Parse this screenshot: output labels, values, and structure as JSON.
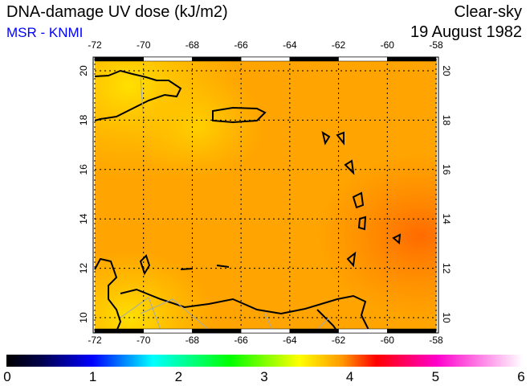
{
  "header": {
    "title": "DNA-damage UV dose (kJ/m2)",
    "source": "MSR - KNMI",
    "sky_condition": "Clear-sky",
    "date": "19 August 1982"
  },
  "map": {
    "lon_ticks": [
      -72,
      -70,
      -68,
      -66,
      -64,
      -62,
      -60,
      -58
    ],
    "lat_ticks": [
      10,
      12,
      14,
      16,
      18,
      20
    ],
    "lon_labels": [
      "-72",
      "-70",
      "-68",
      "-66",
      "-64",
      "-62",
      "-60",
      "-58"
    ],
    "lat_labels": [
      "10",
      "12",
      "14",
      "16",
      "18",
      "20"
    ],
    "dominant_value_range": [
      3.6,
      4.2
    ]
  },
  "colorbar": {
    "labels": [
      "0",
      "1",
      "2",
      "3",
      "4",
      "5",
      "6"
    ],
    "range": [
      0,
      6
    ],
    "stops": [
      {
        "v": 0,
        "c": "#000000"
      },
      {
        "v": 0.4,
        "c": "#00004a"
      },
      {
        "v": 1.0,
        "c": "#0000ff"
      },
      {
        "v": 1.7,
        "c": "#00ffff"
      },
      {
        "v": 2.6,
        "c": "#00ff00"
      },
      {
        "v": 3.4,
        "c": "#ffff00"
      },
      {
        "v": 3.9,
        "c": "#ff9900"
      },
      {
        "v": 4.3,
        "c": "#ff0000"
      },
      {
        "v": 5.0,
        "c": "#ff00cc"
      },
      {
        "v": 6.0,
        "c": "#ffffff"
      }
    ]
  }
}
